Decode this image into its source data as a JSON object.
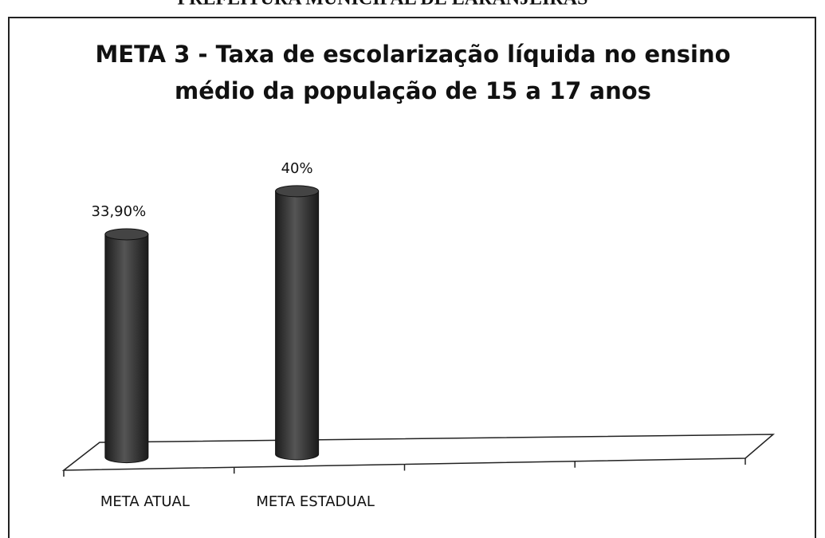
{
  "header": "PREFEITURA MUNICIPAL DE LARANJEIRAS",
  "chart_data": {
    "type": "bar",
    "title": [
      "META 3 - Taxa de escolarização líquida no ensino",
      "médio da população de 15 a 17 anos"
    ],
    "categories": [
      "META ATUAL",
      "META ESTADUAL",
      null,
      null
    ],
    "values": [
      33.9,
      40,
      null,
      null
    ],
    "value_labels": [
      "33,90%",
      "40%",
      null,
      null
    ],
    "color": "#3a3a3a"
  }
}
